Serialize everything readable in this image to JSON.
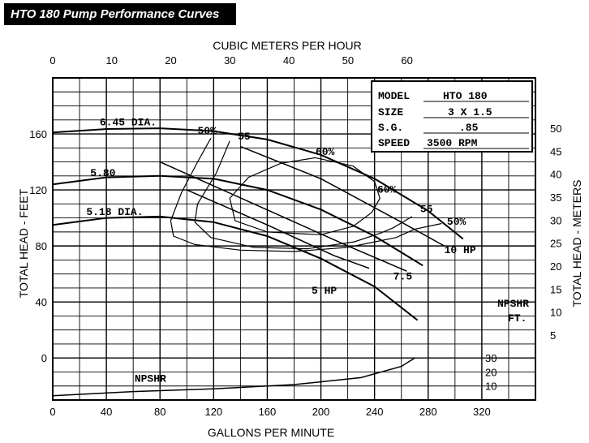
{
  "title": "HTO 180 Pump Performance Curves",
  "info_box": {
    "rows": [
      {
        "label": "MODEL",
        "value": "HTO 180"
      },
      {
        "label": "SIZE",
        "value": "3 X 1.5"
      },
      {
        "label": "S.G.",
        "value": ".85"
      },
      {
        "label": "SPEED",
        "value": "3500 RPM"
      }
    ]
  },
  "chart_data": {
    "type": "line",
    "title": "HTO 180 Pump Performance Curves",
    "xlabel": "GALLONS PER MINUTE",
    "x2label": "CUBIC METERS PER HOUR",
    "ylabel": "TOTAL HEAD - FEET",
    "y2label": "TOTAL HEAD - METERS",
    "npshr_axis_label": [
      "NPSHR",
      "FT."
    ],
    "xlim": [
      0,
      360
    ],
    "ylim": [
      -30,
      200
    ],
    "grid": true,
    "x_ticks": [
      "0",
      "40",
      "80",
      "120",
      "160",
      "200",
      "240",
      "280",
      "320"
    ],
    "x2_ticks": [
      "0",
      "10",
      "20",
      "30",
      "40",
      "50",
      "60"
    ],
    "y_ticks": [
      "0",
      "40",
      "80",
      "120",
      "160"
    ],
    "y2_ticks": [
      "5",
      "10",
      "15",
      "20",
      "25",
      "30",
      "35",
      "40",
      "45",
      "50"
    ],
    "npshr_ticks": [
      "10",
      "20",
      "30"
    ],
    "series": [
      {
        "name": "6.45 DIA.",
        "kind": "head",
        "points": [
          [
            0,
            161
          ],
          [
            40,
            163.5
          ],
          [
            80,
            164
          ],
          [
            120,
            162
          ],
          [
            160,
            156
          ],
          [
            200,
            145
          ],
          [
            240,
            128
          ],
          [
            280,
            105
          ],
          [
            306,
            85
          ]
        ]
      },
      {
        "name": "5.80",
        "kind": "head",
        "points": [
          [
            0,
            124
          ],
          [
            40,
            129
          ],
          [
            80,
            130
          ],
          [
            120,
            128
          ],
          [
            160,
            120
          ],
          [
            200,
            106
          ],
          [
            240,
            87
          ],
          [
            276,
            66
          ]
        ]
      },
      {
        "name": "5.18 DIA.",
        "kind": "head",
        "points": [
          [
            0,
            95
          ],
          [
            40,
            100
          ],
          [
            80,
            101
          ],
          [
            120,
            97
          ],
          [
            160,
            87
          ],
          [
            200,
            71
          ],
          [
            240,
            51
          ],
          [
            272,
            27
          ]
        ]
      },
      {
        "name": "50%",
        "kind": "efficiency",
        "points": [
          [
            118,
            157
          ],
          [
            108,
            140
          ],
          [
            96,
            118
          ],
          [
            88,
            98
          ],
          [
            90,
            87
          ],
          [
            106,
            81
          ],
          [
            140,
            77
          ],
          [
            180,
            76
          ],
          [
            220,
            79
          ],
          [
            256,
            86
          ],
          [
            270,
            92
          ],
          [
            290,
            96
          ]
        ]
      },
      {
        "name": "55",
        "kind": "efficiency",
        "points": [
          [
            132,
            155
          ],
          [
            122,
            132
          ],
          [
            108,
            110
          ],
          [
            106,
            97
          ],
          [
            118,
            86
          ],
          [
            150,
            79
          ],
          [
            190,
            78
          ],
          [
            225,
            83
          ],
          [
            244,
            89
          ],
          [
            254,
            93
          ],
          [
            268,
            101
          ]
        ]
      },
      {
        "name": "60%",
        "kind": "efficiency",
        "points": [
          [
            196,
            143
          ],
          [
            170,
            139
          ],
          [
            146,
            129
          ],
          [
            132,
            114
          ],
          [
            136,
            98
          ],
          [
            160,
            90
          ],
          [
            200,
            88
          ],
          [
            224,
            94
          ],
          [
            238,
            104
          ],
          [
            244,
            114
          ],
          [
            240,
            126
          ],
          [
            224,
            137
          ],
          [
            196,
            143
          ]
        ]
      },
      {
        "name": "10 HP",
        "kind": "power",
        "points": [
          [
            140,
            151
          ],
          [
            200,
            128
          ],
          [
            260,
            97
          ],
          [
            292,
            80
          ]
        ]
      },
      {
        "name": "7.5",
        "kind": "power",
        "points": [
          [
            80,
            140
          ],
          [
            150,
            110
          ],
          [
            220,
            80
          ],
          [
            264,
            62
          ]
        ]
      },
      {
        "name": "5 HP",
        "kind": "power",
        "points": [
          [
            100,
            120
          ],
          [
            160,
            95
          ],
          [
            210,
            73
          ],
          [
            236,
            64
          ]
        ]
      },
      {
        "name": "NPSHR",
        "kind": "npshr",
        "points": [
          [
            0,
            -27
          ],
          [
            60,
            -24
          ],
          [
            120,
            -22
          ],
          [
            180,
            -19
          ],
          [
            230,
            -14
          ],
          [
            260,
            -6
          ],
          [
            270,
            0
          ]
        ]
      }
    ]
  }
}
